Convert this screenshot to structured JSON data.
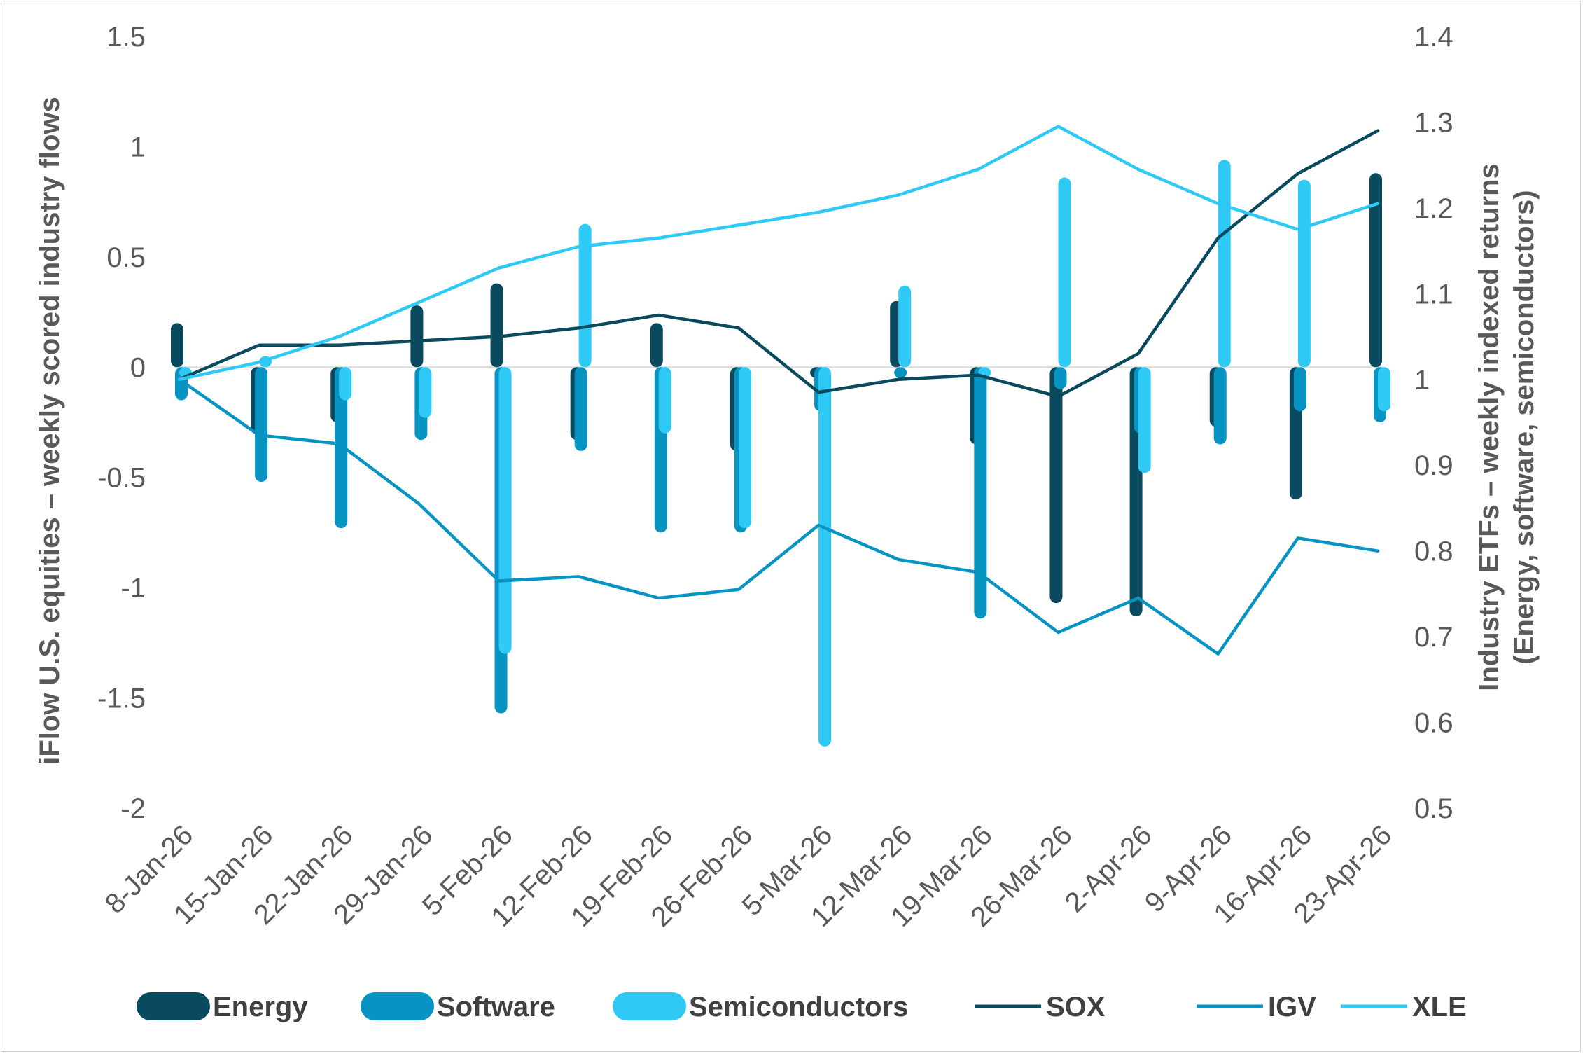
{
  "chart_data": {
    "type": "bar",
    "categories": [
      "8-Jan-26",
      "15-Jan-26",
      "22-Jan-26",
      "29-Jan-26",
      "5-Feb-26",
      "12-Feb-26",
      "19-Feb-26",
      "26-Feb-26",
      "5-Mar-26",
      "12-Mar-26",
      "19-Mar-26",
      "26-Mar-26",
      "2-Apr-26",
      "9-Apr-26",
      "16-Apr-26",
      "23-Apr-26"
    ],
    "bar_series": [
      {
        "name": "Energy",
        "color": "#0a4a5e",
        "values": [
          0.2,
          -0.3,
          -0.25,
          0.28,
          0.38,
          -0.33,
          0.2,
          -0.38,
          -0.05,
          0.3,
          -0.35,
          -1.07,
          -1.13,
          -0.27,
          -0.6,
          0.88
        ]
      },
      {
        "name": "Software",
        "color": "#0894c3",
        "values": [
          -0.15,
          -0.52,
          -0.73,
          -0.33,
          -1.57,
          -0.38,
          -0.75,
          -0.75,
          -0.2,
          -0.05,
          -1.14,
          -0.1,
          -0.3,
          -0.35,
          -0.2,
          -0.25
        ]
      },
      {
        "name": "Semiconductors",
        "color": "#2fc9f5",
        "values": [
          -0.05,
          0.05,
          -0.15,
          -0.23,
          -1.3,
          0.65,
          -0.3,
          -0.73,
          -1.72,
          0.37,
          -0.05,
          0.86,
          -0.48,
          0.94,
          0.85,
          -0.2
        ]
      }
    ],
    "line_series": [
      {
        "name": "SOX",
        "color": "#0a4a5e",
        "values": [
          1.0,
          1.04,
          1.04,
          1.045,
          1.05,
          1.06,
          1.075,
          1.06,
          0.985,
          1.0,
          1.005,
          0.98,
          1.03,
          1.165,
          1.24,
          1.29
        ]
      },
      {
        "name": "IGV",
        "color": "#0894c3",
        "values": [
          1.0,
          0.935,
          0.925,
          0.855,
          0.765,
          0.77,
          0.745,
          0.755,
          0.83,
          0.79,
          0.775,
          0.705,
          0.745,
          0.68,
          0.815,
          0.8
        ]
      },
      {
        "name": "XLE",
        "color": "#2fc9f5",
        "values": [
          1.0,
          1.02,
          1.05,
          1.09,
          1.13,
          1.155,
          1.165,
          1.18,
          1.195,
          1.215,
          1.245,
          1.295,
          1.245,
          1.205,
          1.175,
          1.205
        ]
      }
    ],
    "y_left": {
      "label": "iFlow U.S. equities – weekly scored industry flows",
      "ylim": [
        -2,
        1.5
      ],
      "ticks": [
        "1.5",
        "1",
        "0.5",
        "0",
        "-0.5",
        "-1",
        "-1.5",
        "-2"
      ],
      "tick_values": [
        1.5,
        1,
        0.5,
        0,
        -0.5,
        -1,
        -1.5,
        -2
      ]
    },
    "y_right": {
      "label_line1": "Industry ETFs – weekly indexed returns",
      "label_line2": "(Energy, software, semiconductors)",
      "ylim": [
        0.5,
        1.4
      ],
      "ticks": [
        "1.4",
        "1.3",
        "1.2",
        "1.1",
        "1",
        "0.9",
        "0.8",
        "0.7",
        "0.6",
        "0.5"
      ],
      "tick_values": [
        1.4,
        1.3,
        1.2,
        1.1,
        1,
        0.9,
        0.8,
        0.7,
        0.6,
        0.5
      ]
    },
    "grid": false,
    "legend_position": "bottom",
    "legend": [
      {
        "label": "Energy",
        "kind": "bar",
        "color": "#0a4a5e"
      },
      {
        "label": "Software",
        "kind": "bar",
        "color": "#0894c3"
      },
      {
        "label": "Semiconductors",
        "kind": "bar",
        "color": "#2fc9f5"
      },
      {
        "label": "SOX",
        "kind": "line",
        "color": "#0a4a5e"
      },
      {
        "label": "IGV",
        "kind": "line",
        "color": "#0894c3"
      },
      {
        "label": "XLE",
        "kind": "line",
        "color": "#2fc9f5"
      }
    ]
  }
}
